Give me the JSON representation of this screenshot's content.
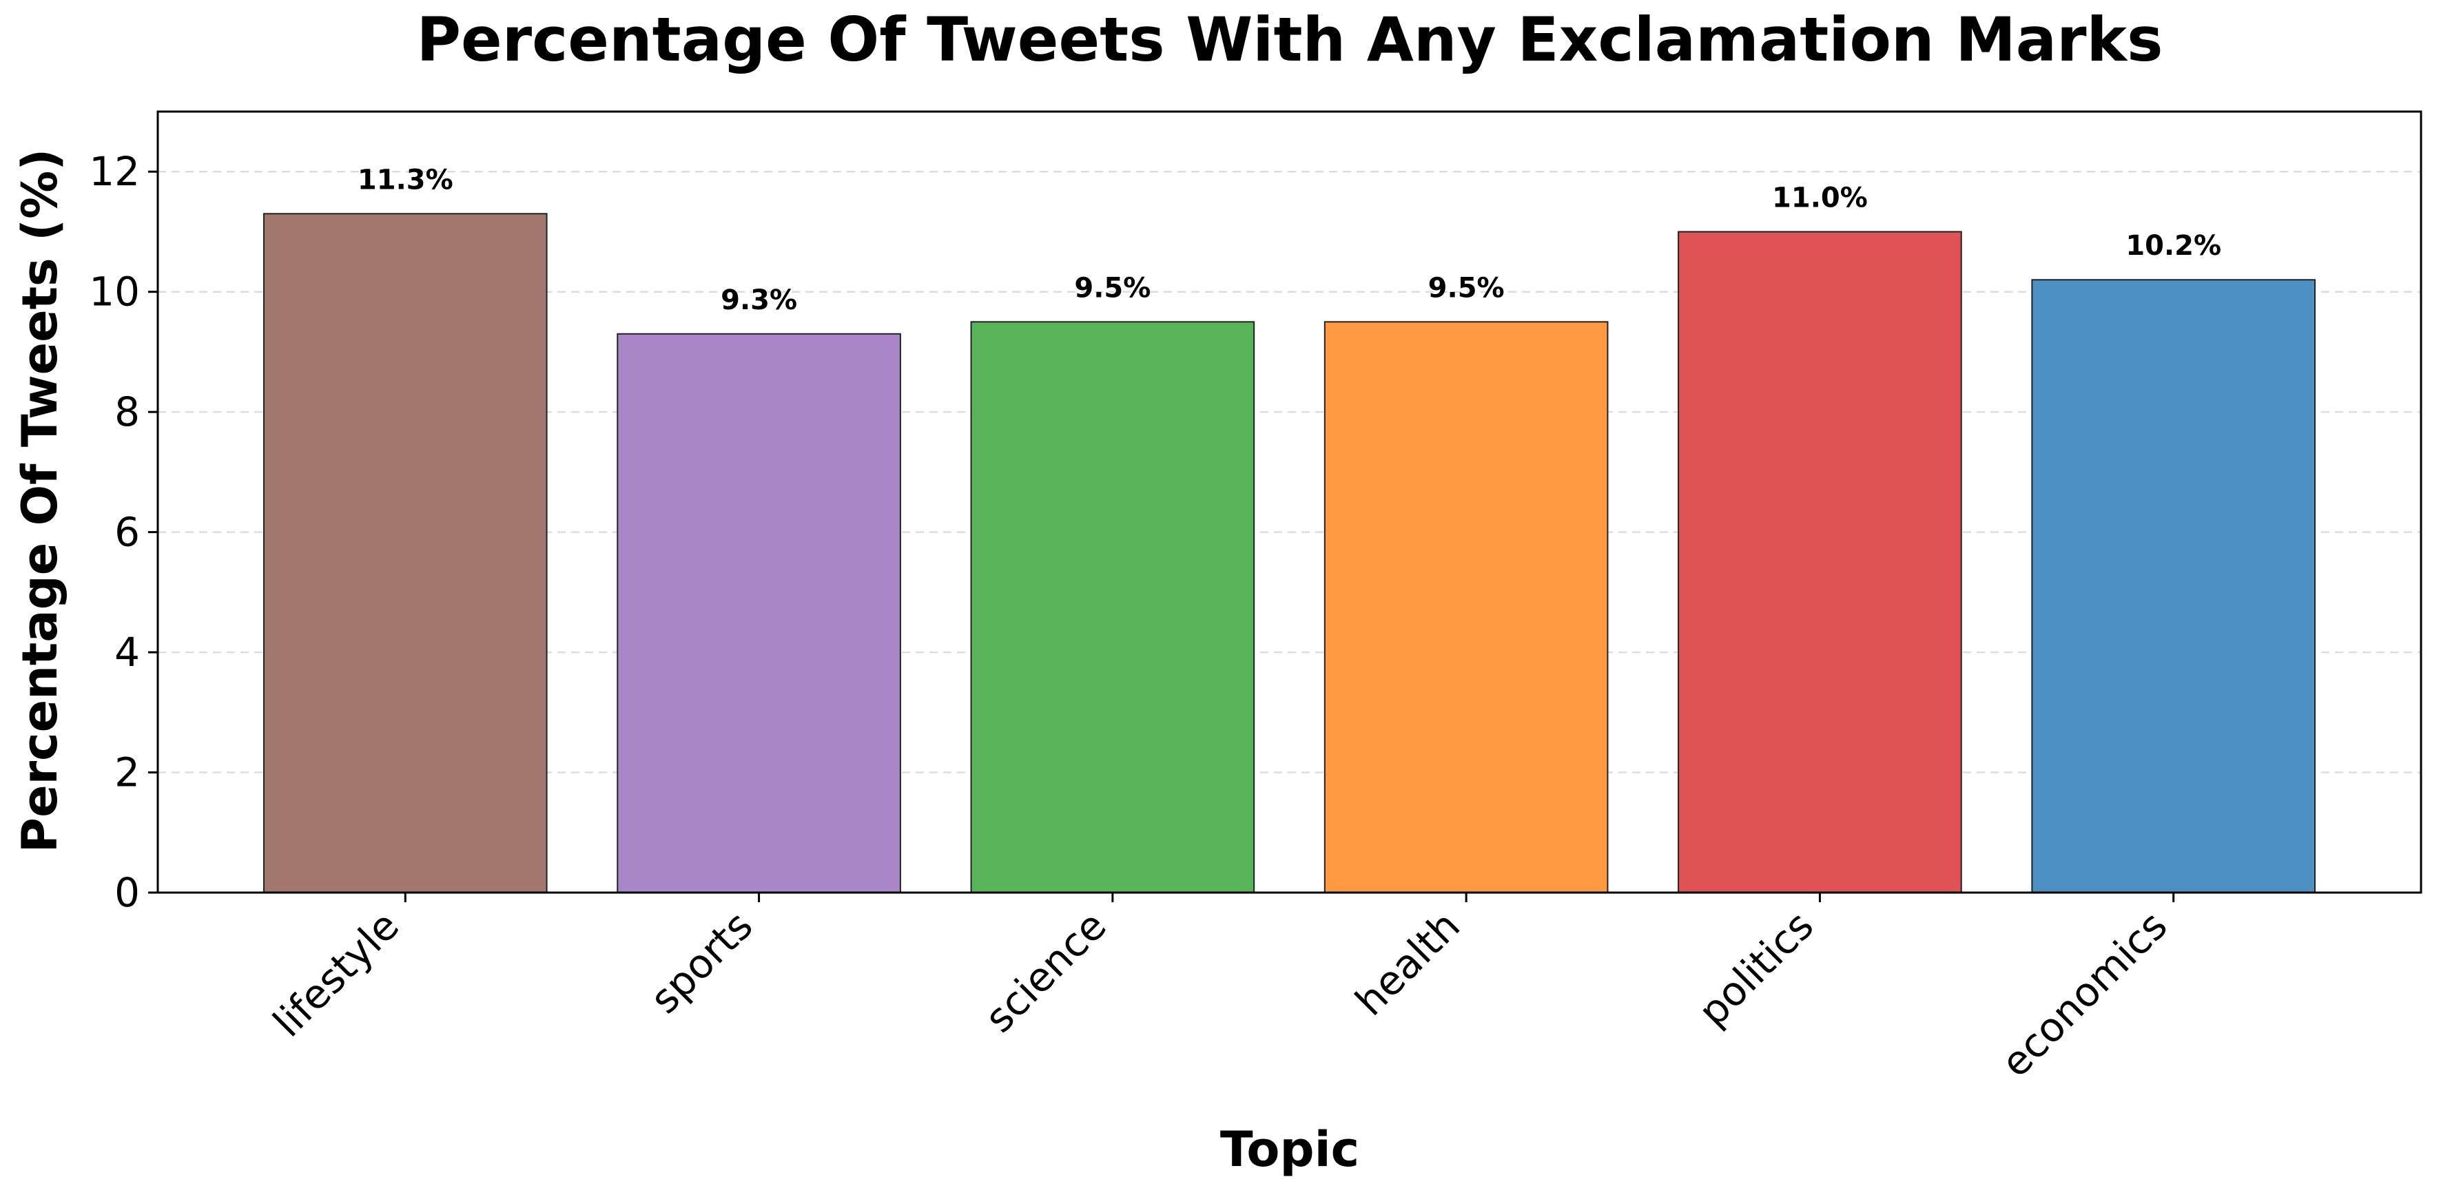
{
  "chart_data": {
    "type": "bar",
    "title": "Percentage Of Tweets With Any Exclamation Marks",
    "xlabel": "Topic",
    "ylabel": "Percentage Of Tweets (%)",
    "categories": [
      "lifestyle",
      "sports",
      "science",
      "health",
      "politics",
      "economics"
    ],
    "values": [
      11.3,
      9.3,
      9.5,
      9.5,
      11.0,
      10.2
    ],
    "data_labels": [
      "11.3%",
      "9.3%",
      "9.5%",
      "9.5%",
      "11.0%",
      "10.2%"
    ],
    "colors": [
      "#a1776e",
      "#a886c8",
      "#58b459",
      "#ff9a43",
      "#df5357",
      "#4c91c2"
    ],
    "ylim": [
      0,
      13
    ],
    "yticks": [
      0,
      2,
      4,
      6,
      8,
      10,
      12
    ],
    "grid": "y-dashed",
    "legend": "none"
  }
}
